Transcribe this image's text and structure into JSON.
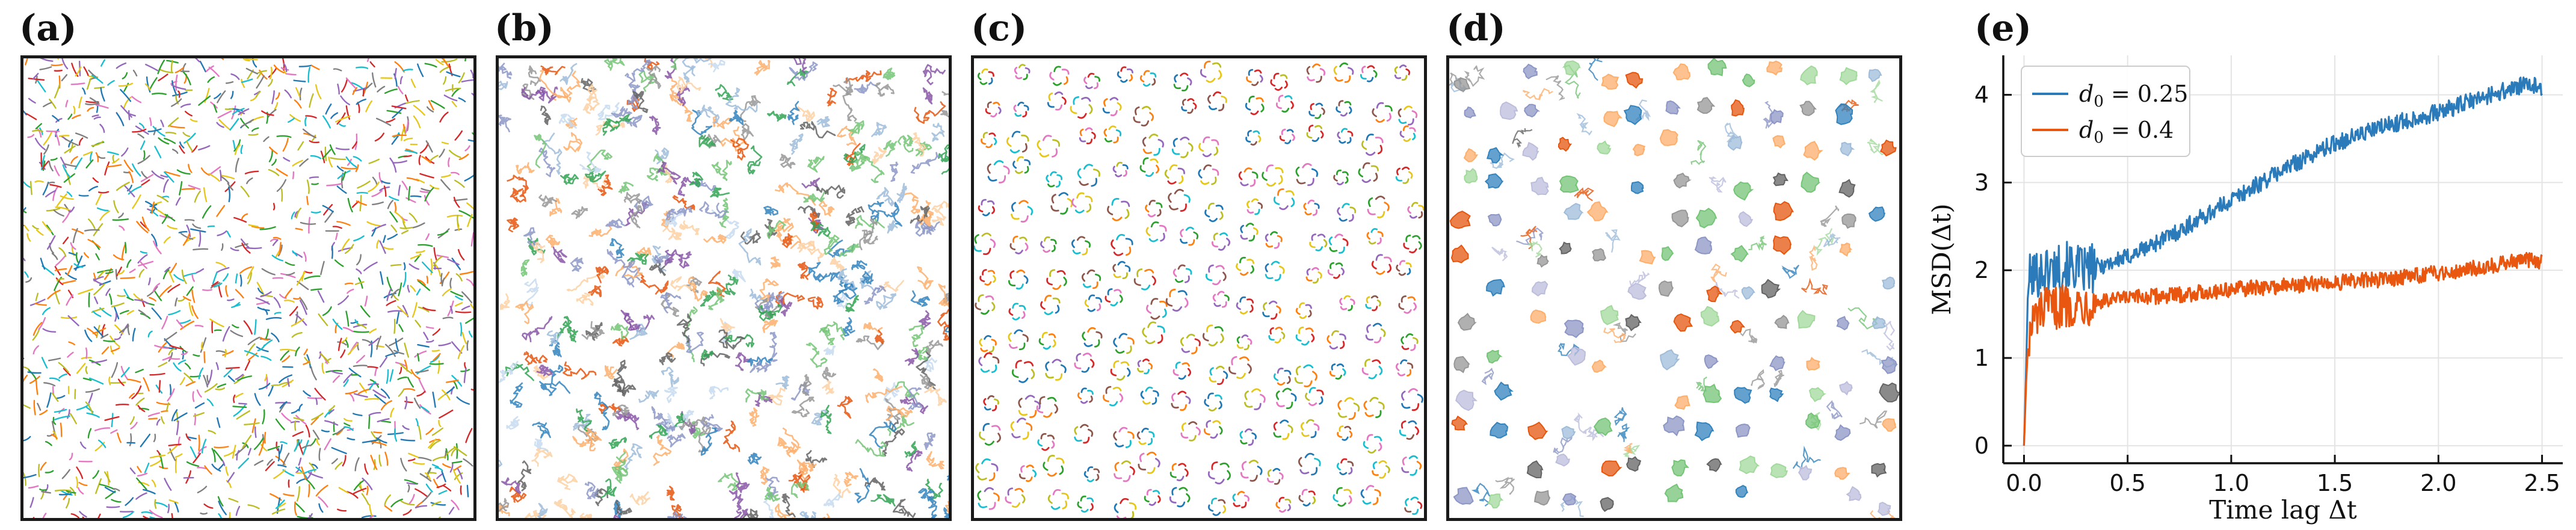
{
  "panels": {
    "a": {
      "label": "(a)",
      "palette": [
        "#1f77b4",
        "#ff7f0e",
        "#2ca02c",
        "#d62728",
        "#9467bd",
        "#e6c619",
        "#17becf",
        "#e377c2",
        "#7f7f7f",
        "#bcbd22"
      ],
      "style": "short-dashes"
    },
    "b": {
      "label": "(b)",
      "palette": [
        "#9ebcda",
        "#8c96c6",
        "#8856a7",
        "#fdae6b",
        "#e6550d",
        "#74c476",
        "#31a354",
        "#969696",
        "#636363",
        "#c6dbef",
        "#3182bd",
        "#fdd0a2"
      ],
      "style": "random-walk"
    },
    "c": {
      "label": "(c)",
      "palette": [
        "#1f77b4",
        "#ff7f0e",
        "#2ca02c",
        "#d62728",
        "#9467bd",
        "#e6c619",
        "#17becf",
        "#e377c2",
        "#8c564b",
        "#bcbd22"
      ],
      "style": "swirls"
    },
    "d": {
      "label": "(d)",
      "palette": [
        "#9ebcda",
        "#8c96c6",
        "#74c476",
        "#fdae6b",
        "#e6550d",
        "#969696",
        "#3182bd",
        "#a1d99b",
        "#bcbddc",
        "#636363"
      ],
      "style": "blobs"
    },
    "e": {
      "label": "(e)"
    }
  },
  "chart_data": {
    "type": "line",
    "title": "",
    "xlabel": "Time lag Δt",
    "ylabel": "MSD(Δt)",
    "xlim": [
      -0.1,
      2.6
    ],
    "ylim": [
      -0.2,
      4.45
    ],
    "xticks": [
      0.0,
      0.5,
      1.0,
      1.5,
      2.0,
      2.5
    ],
    "xtick_labels": [
      "0.0",
      "0.5",
      "1.0",
      "1.5",
      "2.0",
      "2.5"
    ],
    "yticks": [
      0,
      1,
      2,
      3,
      4
    ],
    "ytick_labels": [
      "0",
      "1",
      "2",
      "3",
      "4"
    ],
    "grid": true,
    "legend_position": "top-left",
    "series": [
      {
        "name": "d0 = 0.25",
        "legend_main": "d",
        "legend_sub": "0",
        "legend_rest": " = 0.25",
        "color": "#2b7bba",
        "x": [
          0.0,
          0.01,
          0.02,
          0.05,
          0.1,
          0.2,
          0.3,
          0.5,
          0.75,
          1.0,
          1.25,
          1.5,
          1.75,
          2.0,
          2.25,
          2.4,
          2.5
        ],
        "y": [
          0.0,
          0.85,
          1.9,
          1.95,
          2.0,
          2.05,
          2.0,
          2.15,
          2.45,
          2.8,
          3.15,
          3.45,
          3.65,
          3.8,
          4.0,
          4.1,
          4.1
        ]
      },
      {
        "name": "d0 = 0.4",
        "legend_main": "d",
        "legend_sub": "0",
        "legend_rest": " = 0.4",
        "color": "#e8560f",
        "x": [
          0.0,
          0.01,
          0.02,
          0.05,
          0.1,
          0.2,
          0.3,
          0.5,
          0.75,
          1.0,
          1.25,
          1.5,
          1.75,
          2.0,
          2.25,
          2.4,
          2.5
        ],
        "y": [
          0.0,
          0.7,
          1.2,
          1.45,
          1.55,
          1.6,
          1.62,
          1.68,
          1.72,
          1.78,
          1.82,
          1.86,
          1.9,
          1.97,
          2.05,
          2.12,
          2.1
        ]
      }
    ]
  }
}
